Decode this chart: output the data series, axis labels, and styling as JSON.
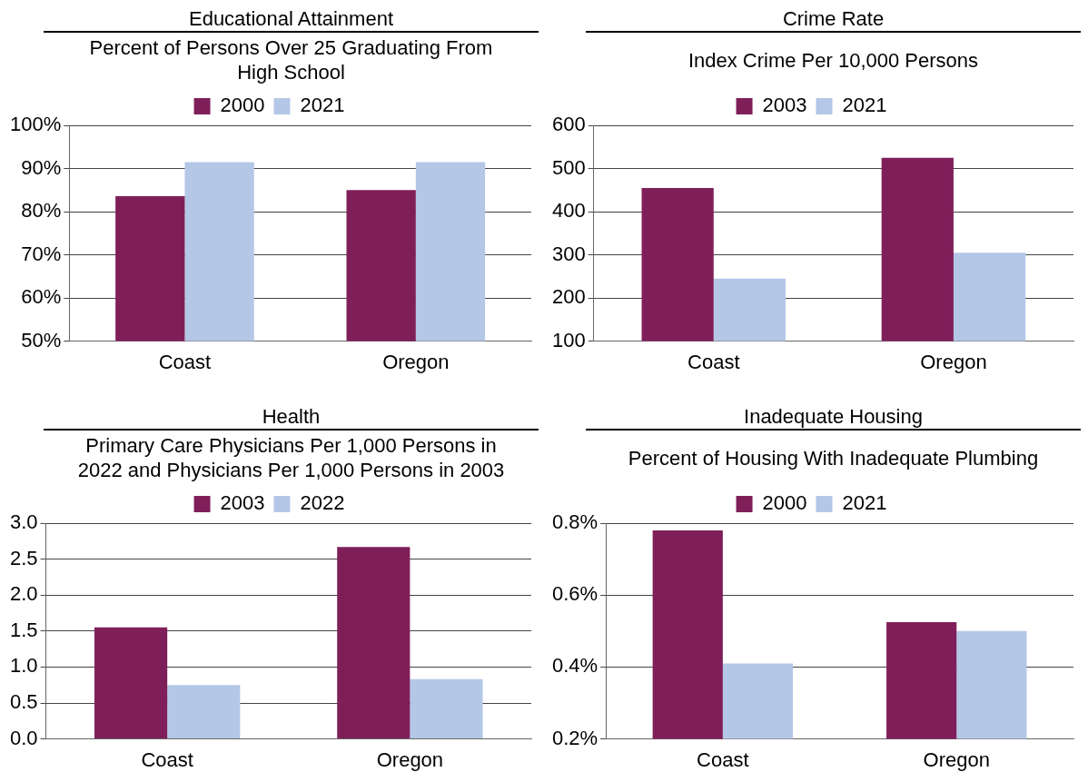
{
  "chart_data": [
    {
      "type": "bar",
      "title": "Educational Attainment",
      "subtitle": "Percent of Persons Over 25 Graduating From High School",
      "categories": [
        "Coast",
        "Oregon"
      ],
      "series": [
        {
          "name": "2000",
          "color": "#7f1f5a",
          "values": [
            83.6,
            85.0
          ]
        },
        {
          "name": "2021",
          "color": "#b4c7e7",
          "values": [
            91.5,
            91.5
          ]
        }
      ],
      "ylim": [
        50,
        100
      ],
      "yticks": [
        {
          "value": 50,
          "label": "50%"
        },
        {
          "value": 60,
          "label": "60%"
        },
        {
          "value": 70,
          "label": "70%"
        },
        {
          "value": 80,
          "label": "80%"
        },
        {
          "value": 90,
          "label": "90%"
        },
        {
          "value": 100,
          "label": "100%"
        }
      ],
      "grid": "y",
      "legend": "top"
    },
    {
      "type": "bar",
      "title": "Crime Rate",
      "subtitle": "Index Crime Per 10,000 Persons",
      "categories": [
        "Coast",
        "Oregon"
      ],
      "series": [
        {
          "name": "2003",
          "color": "#7f1f5a",
          "values": [
            455,
            525
          ]
        },
        {
          "name": "2021",
          "color": "#b4c7e7",
          "values": [
            245,
            305
          ]
        }
      ],
      "ylim": [
        100,
        600
      ],
      "yticks": [
        100,
        200,
        300,
        400,
        500,
        600
      ],
      "grid": "y",
      "legend": "top"
    },
    {
      "type": "bar",
      "title": "Health",
      "subtitle": "Primary Care Physicians Per 1,000 Persons in 2022 and Physicians Per 1,000 Persons in 2003",
      "categories": [
        "Coast",
        "Oregon"
      ],
      "series": [
        {
          "name": "2003",
          "color": "#7f1f5a",
          "values": [
            1.55,
            2.67
          ]
        },
        {
          "name": "2022",
          "color": "#b4c7e7",
          "values": [
            0.75,
            0.83
          ]
        }
      ],
      "ylim": [
        0,
        3
      ],
      "yticks": [
        {
          "value": 0,
          "label": "0.0"
        },
        {
          "value": 0.5,
          "label": "0.5"
        },
        {
          "value": 1,
          "label": "1.0"
        },
        {
          "value": 1.5,
          "label": "1.5"
        },
        {
          "value": 2,
          "label": "2.0"
        },
        {
          "value": 2.5,
          "label": "2.5"
        },
        {
          "value": 3,
          "label": "3.0"
        }
      ],
      "grid": "y",
      "legend": "top"
    },
    {
      "type": "bar",
      "title": "Inadequate Housing",
      "subtitle": "Percent of Housing With Inadequate Plumbing",
      "categories": [
        "Coast",
        "Oregon"
      ],
      "series": [
        {
          "name": "2000",
          "color": "#7f1f5a",
          "values": [
            0.78,
            0.525
          ]
        },
        {
          "name": "2021",
          "color": "#b4c7e7",
          "values": [
            0.41,
            0.5
          ]
        }
      ],
      "ylim": [
        0.2,
        0.8
      ],
      "yticks": [
        {
          "value": 0.2,
          "label": "0.2%"
        },
        {
          "value": 0.4,
          "label": "0.4%"
        },
        {
          "value": 0.6,
          "label": "0.6%"
        },
        {
          "value": 0.8,
          "label": "0.8%"
        }
      ],
      "grid": "y",
      "legend": "top"
    }
  ]
}
